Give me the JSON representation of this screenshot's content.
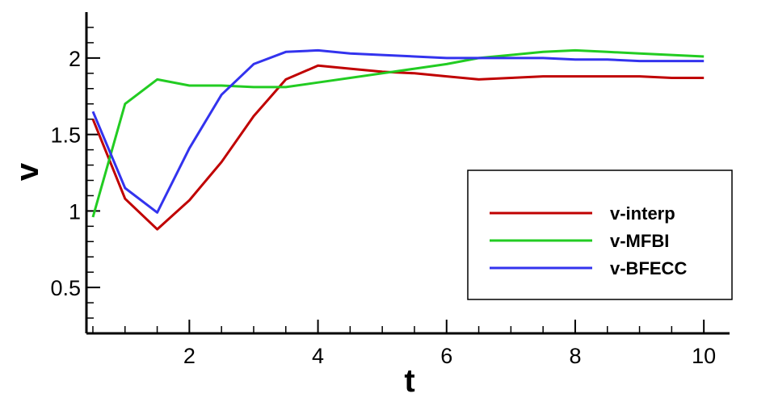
{
  "chart_data": {
    "type": "line",
    "title": "",
    "xlabel": "t",
    "ylabel": "v",
    "xlim": [
      0.4,
      10.4
    ],
    "ylim": [
      0.2,
      2.3
    ],
    "xticks": [
      2,
      4,
      6,
      8,
      10
    ],
    "xtick_labels": [
      "2",
      "4",
      "6",
      "8",
      "10"
    ],
    "yticks": [
      0.5,
      1,
      1.5,
      2
    ],
    "ytick_labels": [
      "0.5",
      "1",
      "1.5",
      "2"
    ],
    "grid": false,
    "legend_position": "lower-right",
    "series": [
      {
        "name": "v-interp",
        "color": "#c00000",
        "x": [
          0.5,
          1.0,
          1.5,
          2.0,
          2.5,
          3.0,
          3.5,
          4.0,
          4.5,
          5.0,
          5.5,
          6.0,
          6.5,
          7.0,
          7.5,
          8.0,
          8.5,
          9.0,
          9.5,
          10.0
        ],
        "y": [
          1.6,
          1.08,
          0.88,
          1.07,
          1.32,
          1.62,
          1.86,
          1.95,
          1.93,
          1.91,
          1.9,
          1.88,
          1.86,
          1.87,
          1.88,
          1.88,
          1.88,
          1.88,
          1.87,
          1.87
        ]
      },
      {
        "name": "v-MFBI",
        "color": "#22cc22",
        "x": [
          0.5,
          1.0,
          1.5,
          2.0,
          2.5,
          3.0,
          3.5,
          4.0,
          4.5,
          5.0,
          5.5,
          6.0,
          6.5,
          7.0,
          7.5,
          8.0,
          8.5,
          9.0,
          9.5,
          10.0
        ],
        "y": [
          0.96,
          1.7,
          1.86,
          1.82,
          1.82,
          1.81,
          1.81,
          1.84,
          1.87,
          1.9,
          1.93,
          1.96,
          2.0,
          2.02,
          2.04,
          2.05,
          2.04,
          2.03,
          2.02,
          2.01
        ]
      },
      {
        "name": "v-BFECC",
        "color": "#3333ee",
        "x": [
          0.5,
          1.0,
          1.5,
          2.0,
          2.5,
          3.0,
          3.5,
          4.0,
          4.5,
          5.0,
          5.5,
          6.0,
          6.5,
          7.0,
          7.5,
          8.0,
          8.5,
          9.0,
          9.5,
          10.0
        ],
        "y": [
          1.65,
          1.15,
          0.99,
          1.41,
          1.76,
          1.96,
          2.04,
          2.05,
          2.03,
          2.02,
          2.01,
          2.0,
          2.0,
          2.0,
          2.0,
          1.99,
          1.99,
          1.98,
          1.98,
          1.98
        ]
      }
    ]
  }
}
